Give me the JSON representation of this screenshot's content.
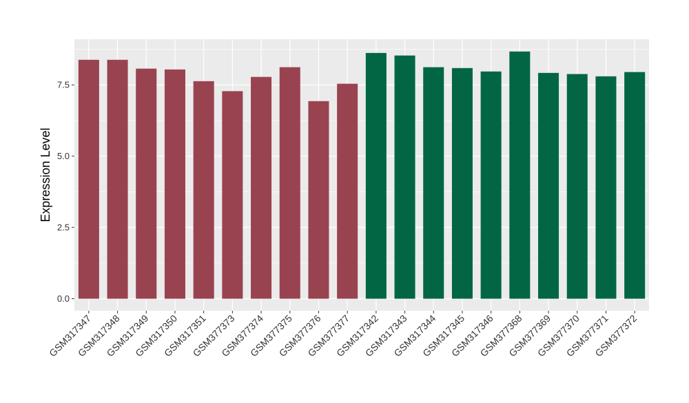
{
  "chart_data": {
    "type": "bar",
    "ylabel": "Expression Level",
    "ylim": [
      -0.42,
      9.1
    ],
    "yticks": [
      0.0,
      2.5,
      5.0,
      7.5
    ],
    "ytick_labels": [
      "0.0",
      "2.5",
      "5.0",
      "7.5"
    ],
    "grid": true,
    "legend": "none",
    "categories": [
      "GSM317347",
      "GSM317348",
      "GSM317349",
      "GSM317350",
      "GSM317351",
      "GSM377373",
      "GSM377374",
      "GSM377375",
      "GSM377376",
      "GSM377377",
      "GSM317342",
      "GSM317343",
      "GSM317344",
      "GSM317345",
      "GSM317346",
      "GSM377368",
      "GSM377369",
      "GSM377370",
      "GSM377371",
      "GSM377372"
    ],
    "values": [
      8.38,
      8.38,
      8.07,
      8.04,
      7.63,
      7.28,
      7.78,
      8.12,
      6.93,
      7.54,
      8.62,
      8.53,
      8.12,
      8.09,
      7.97,
      8.67,
      7.92,
      7.88,
      7.8,
      7.95
    ],
    "colors": [
      "#994350",
      "#994350",
      "#994350",
      "#994350",
      "#994350",
      "#994350",
      "#994350",
      "#994350",
      "#994350",
      "#994350",
      "#026644",
      "#026644",
      "#026644",
      "#026644",
      "#026644",
      "#026644",
      "#026644",
      "#026644",
      "#026644",
      "#026644"
    ],
    "panel_background": "#ebebeb",
    "grid_color": "#ffffff"
  }
}
